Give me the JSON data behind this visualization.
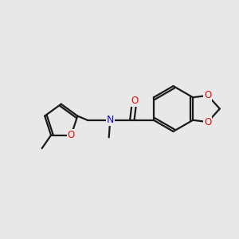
{
  "bg_color": "#e8e8e8",
  "bond_color": "#1a1a1a",
  "N_color": "#1010ee",
  "O_color": "#dd1010",
  "line_width": 1.6,
  "figsize": [
    3.0,
    3.0
  ],
  "dpi": 100,
  "xlim": [
    0,
    10
  ],
  "ylim": [
    0,
    10
  ]
}
